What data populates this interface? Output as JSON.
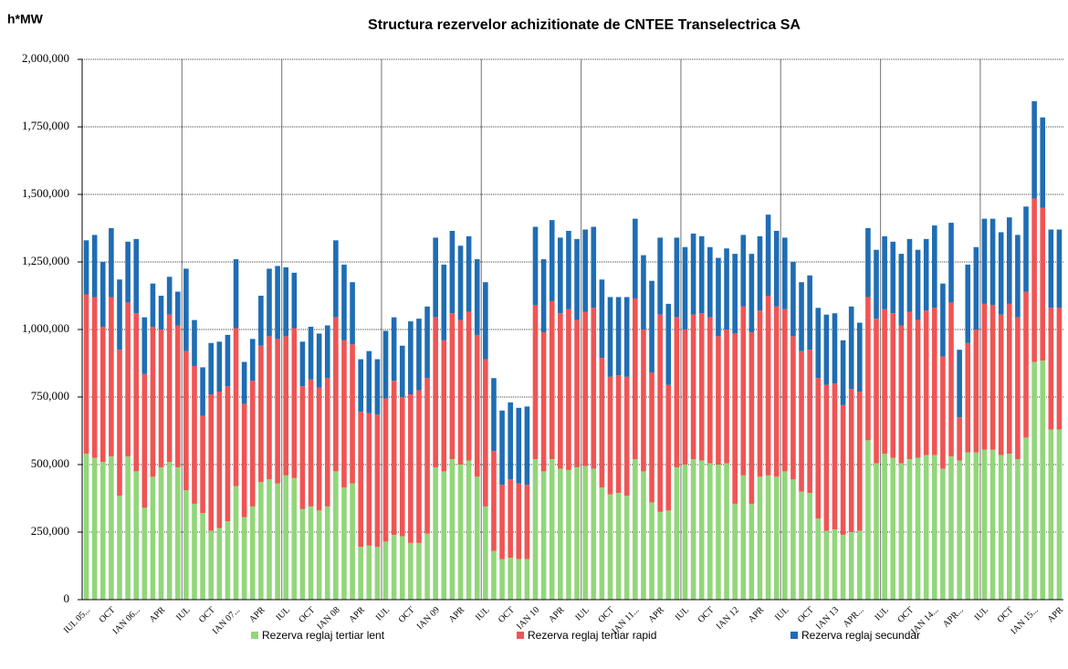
{
  "chart_data": {
    "type": "stacked_bar",
    "title": "Structura rezervelor achizitionate de CNTEE Transelectrica SA",
    "y_label": "h*MW",
    "categories": [
      "IUL 05...",
      null,
      null,
      "OCT",
      null,
      null,
      "IAN 06...",
      null,
      null,
      "APR",
      null,
      null,
      "IUL",
      null,
      null,
      "OCT",
      null,
      null,
      "IAN 07...",
      null,
      null,
      "APR",
      null,
      null,
      "IUL",
      null,
      null,
      "OCT",
      null,
      null,
      "IAN 08",
      null,
      null,
      "APR",
      null,
      null,
      "IUL",
      null,
      null,
      "OCT",
      null,
      null,
      "IAN 09",
      null,
      null,
      "APR",
      null,
      null,
      "IUL",
      null,
      null,
      "OCT",
      null,
      null,
      "IAN 10",
      null,
      null,
      "APR",
      null,
      null,
      "IUL",
      null,
      null,
      "OCT",
      null,
      null,
      "IAN 11...",
      null,
      null,
      "APR",
      null,
      null,
      "IUL",
      null,
      null,
      "OCT",
      null,
      null,
      "IAN 12",
      null,
      null,
      "APR",
      null,
      null,
      "IUL",
      null,
      null,
      "OCT",
      null,
      null,
      "IAN 13",
      null,
      null,
      "APR...",
      null,
      null,
      "IUL",
      null,
      null,
      "OCT",
      null,
      null,
      "IAN 14...",
      null,
      null,
      "APR...",
      null,
      null,
      "IUL",
      null,
      null,
      "OCT",
      null,
      null,
      "IAN 15...",
      null,
      null,
      "APR"
    ],
    "series": [
      {
        "name": "Rezerva reglaj tertiar lent",
        "color": "#92d67a",
        "values": [
          540000,
          525000,
          510000,
          530000,
          385000,
          530000,
          475000,
          340000,
          455000,
          490000,
          510000,
          490000,
          405000,
          355000,
          320000,
          255000,
          265000,
          290000,
          420000,
          305000,
          345000,
          435000,
          445000,
          430000,
          460000,
          450000,
          335000,
          345000,
          330000,
          345000,
          475000,
          415000,
          430000,
          195000,
          200000,
          195000,
          215000,
          240000,
          235000,
          210000,
          210000,
          245000,
          490000,
          475000,
          520000,
          500000,
          515000,
          455000,
          345000,
          180000,
          150000,
          155000,
          150000,
          150000,
          520000,
          475000,
          520000,
          485000,
          480000,
          490000,
          495000,
          485000,
          415000,
          390000,
          395000,
          385000,
          520000,
          475000,
          360000,
          325000,
          330000,
          490000,
          500000,
          520000,
          515000,
          505000,
          500000,
          505000,
          355000,
          460000,
          355000,
          455000,
          460000,
          455000,
          475000,
          445000,
          400000,
          395000,
          300000,
          255000,
          260000,
          240000,
          250000,
          255000,
          590000,
          505000,
          540000,
          525000,
          505000,
          520000,
          525000,
          535000,
          535000,
          485000,
          530000,
          515000,
          545000,
          545000,
          555000,
          555000,
          535000,
          540000,
          520000,
          600000,
          880000,
          885000,
          630000,
          630000
        ]
      },
      {
        "name": "Rezerva reglaj tertiar rapid",
        "color": "#f05454",
        "values": [
          590000,
          595000,
          500000,
          590000,
          540000,
          570000,
          585000,
          495000,
          555000,
          510000,
          545000,
          525000,
          515000,
          510000,
          360000,
          505000,
          505000,
          500000,
          585000,
          420000,
          465000,
          505000,
          530000,
          535000,
          515000,
          555000,
          455000,
          470000,
          455000,
          475000,
          570000,
          545000,
          515000,
          500000,
          490000,
          490000,
          530000,
          570000,
          515000,
          550000,
          565000,
          575000,
          555000,
          485000,
          540000,
          535000,
          550000,
          525000,
          545000,
          370000,
          275000,
          290000,
          280000,
          275000,
          570000,
          515000,
          585000,
          575000,
          595000,
          545000,
          570000,
          595000,
          480000,
          435000,
          435000,
          440000,
          595000,
          525000,
          480000,
          730000,
          465000,
          555000,
          500000,
          535000,
          545000,
          540000,
          475000,
          495000,
          630000,
          625000,
          635000,
          615000,
          665000,
          630000,
          600000,
          530000,
          520000,
          530000,
          520000,
          540000,
          540000,
          480000,
          530000,
          515000,
          530000,
          535000,
          535000,
          535000,
          510000,
          545000,
          510000,
          535000,
          545000,
          415000,
          570000,
          160000,
          405000,
          455000,
          540000,
          535000,
          520000,
          555000,
          525000,
          540000,
          605000,
          565000,
          450000,
          450000
        ]
      },
      {
        "name": "Rezerva reglaj secundar",
        "color": "#1f6db4",
        "values": [
          200000,
          230000,
          240000,
          255000,
          260000,
          225000,
          275000,
          210000,
          160000,
          125000,
          140000,
          125000,
          305000,
          170000,
          180000,
          190000,
          185000,
          190000,
          255000,
          155000,
          155000,
          185000,
          250000,
          270000,
          255000,
          205000,
          165000,
          195000,
          200000,
          195000,
          285000,
          280000,
          230000,
          195000,
          230000,
          205000,
          250000,
          235000,
          190000,
          270000,
          265000,
          265000,
          295000,
          280000,
          305000,
          275000,
          280000,
          280000,
          285000,
          270000,
          275000,
          285000,
          280000,
          290000,
          290000,
          270000,
          300000,
          280000,
          290000,
          300000,
          305000,
          300000,
          290000,
          295000,
          290000,
          295000,
          295000,
          275000,
          340000,
          285000,
          300000,
          295000,
          305000,
          300000,
          285000,
          260000,
          290000,
          300000,
          295000,
          265000,
          290000,
          275000,
          300000,
          280000,
          265000,
          275000,
          255000,
          275000,
          260000,
          260000,
          260000,
          240000,
          305000,
          255000,
          255000,
          255000,
          270000,
          265000,
          265000,
          270000,
          260000,
          265000,
          305000,
          270000,
          295000,
          250000,
          290000,
          305000,
          315000,
          320000,
          305000,
          320000,
          305000,
          315000,
          360000,
          335000,
          290000,
          290000
        ]
      }
    ],
    "ylim": [
      0,
      2000000
    ],
    "yticks": [
      0,
      {
        "value": 250000,
        "label": "250,000"
      },
      {
        "value": 500000,
        "label": "500,000"
      },
      {
        "value": 750000,
        "label": "750,000"
      },
      {
        "value": 1000000,
        "label": "1,000,000"
      },
      {
        "value": 1250000,
        "label": "1,250,000"
      },
      {
        "value": 1500000,
        "label": "1,500,000"
      },
      {
        "value": 1750000,
        "label": "1,750,000"
      },
      {
        "value": 2000000,
        "label": "2,000,000"
      }
    ],
    "grid": true,
    "legend": "bottom"
  }
}
